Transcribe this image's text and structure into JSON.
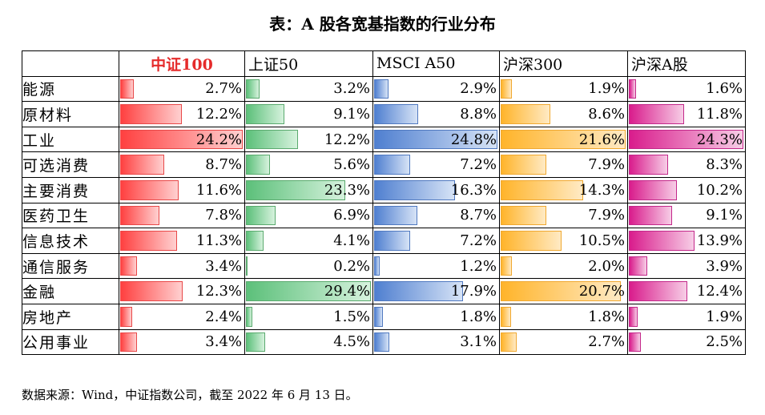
{
  "title": "表：A 股各宽基指数的行业分布",
  "source": "数据来源：Wind，中证指数公司，截至 2022 年 6 月 13 日。",
  "chart_data": {
    "type": "table",
    "columns": [
      "中证100",
      "上证50",
      "MSCI A50",
      "沪深300",
      "沪深A股"
    ],
    "column_colors": {
      "中证100": {
        "edge": "#ff4040",
        "light": "#ffd0d0",
        "border": "#e84848"
      },
      "上证50": {
        "edge": "#5cc07a",
        "light": "#d6f2dd",
        "border": "#5aaa6e"
      },
      "MSCI A50": {
        "edge": "#4f7fd0",
        "light": "#d6e3f6",
        "border": "#5079c0"
      },
      "沪深300": {
        "edge": "#ffb42a",
        "light": "#ffeac4",
        "border": "#f0a830"
      },
      "沪深A股": {
        "edge": "#d91c8c",
        "light": "#f7cde6",
        "border": "#c3288a"
      }
    },
    "rows": [
      {
        "label": "能源",
        "values": [
          "2.7%",
          "3.2%",
          "2.9%",
          "1.9%",
          "1.6%"
        ]
      },
      {
        "label": "原材料",
        "values": [
          "12.2%",
          "9.1%",
          "8.8%",
          "8.6%",
          "11.8%"
        ]
      },
      {
        "label": "工业",
        "values": [
          "24.2%",
          "12.2%",
          "24.8%",
          "21.6%",
          "24.3%"
        ]
      },
      {
        "label": "可选消费",
        "values": [
          "8.7%",
          "5.6%",
          "7.2%",
          "7.9%",
          "8.3%"
        ]
      },
      {
        "label": "主要消费",
        "values": [
          "11.6%",
          "23.3%",
          "16.3%",
          "14.3%",
          "10.2%"
        ]
      },
      {
        "label": "医药卫生",
        "values": [
          "7.8%",
          "6.9%",
          "8.7%",
          "7.9%",
          "9.1%"
        ]
      },
      {
        "label": "信息技术",
        "values": [
          "11.3%",
          "4.1%",
          "7.2%",
          "10.5%",
          "13.9%"
        ]
      },
      {
        "label": "通信服务",
        "values": [
          "3.4%",
          "0.2%",
          "1.2%",
          "2.0%",
          "3.9%"
        ]
      },
      {
        "label": "金融",
        "values": [
          "12.3%",
          "29.4%",
          "17.9%",
          "20.7%",
          "12.4%"
        ]
      },
      {
        "label": "房地产",
        "values": [
          "2.4%",
          "1.5%",
          "1.8%",
          "1.8%",
          "1.9%"
        ]
      },
      {
        "label": "公用事业",
        "values": [
          "3.4%",
          "4.5%",
          "3.1%",
          "2.7%",
          "2.5%"
        ]
      }
    ]
  }
}
